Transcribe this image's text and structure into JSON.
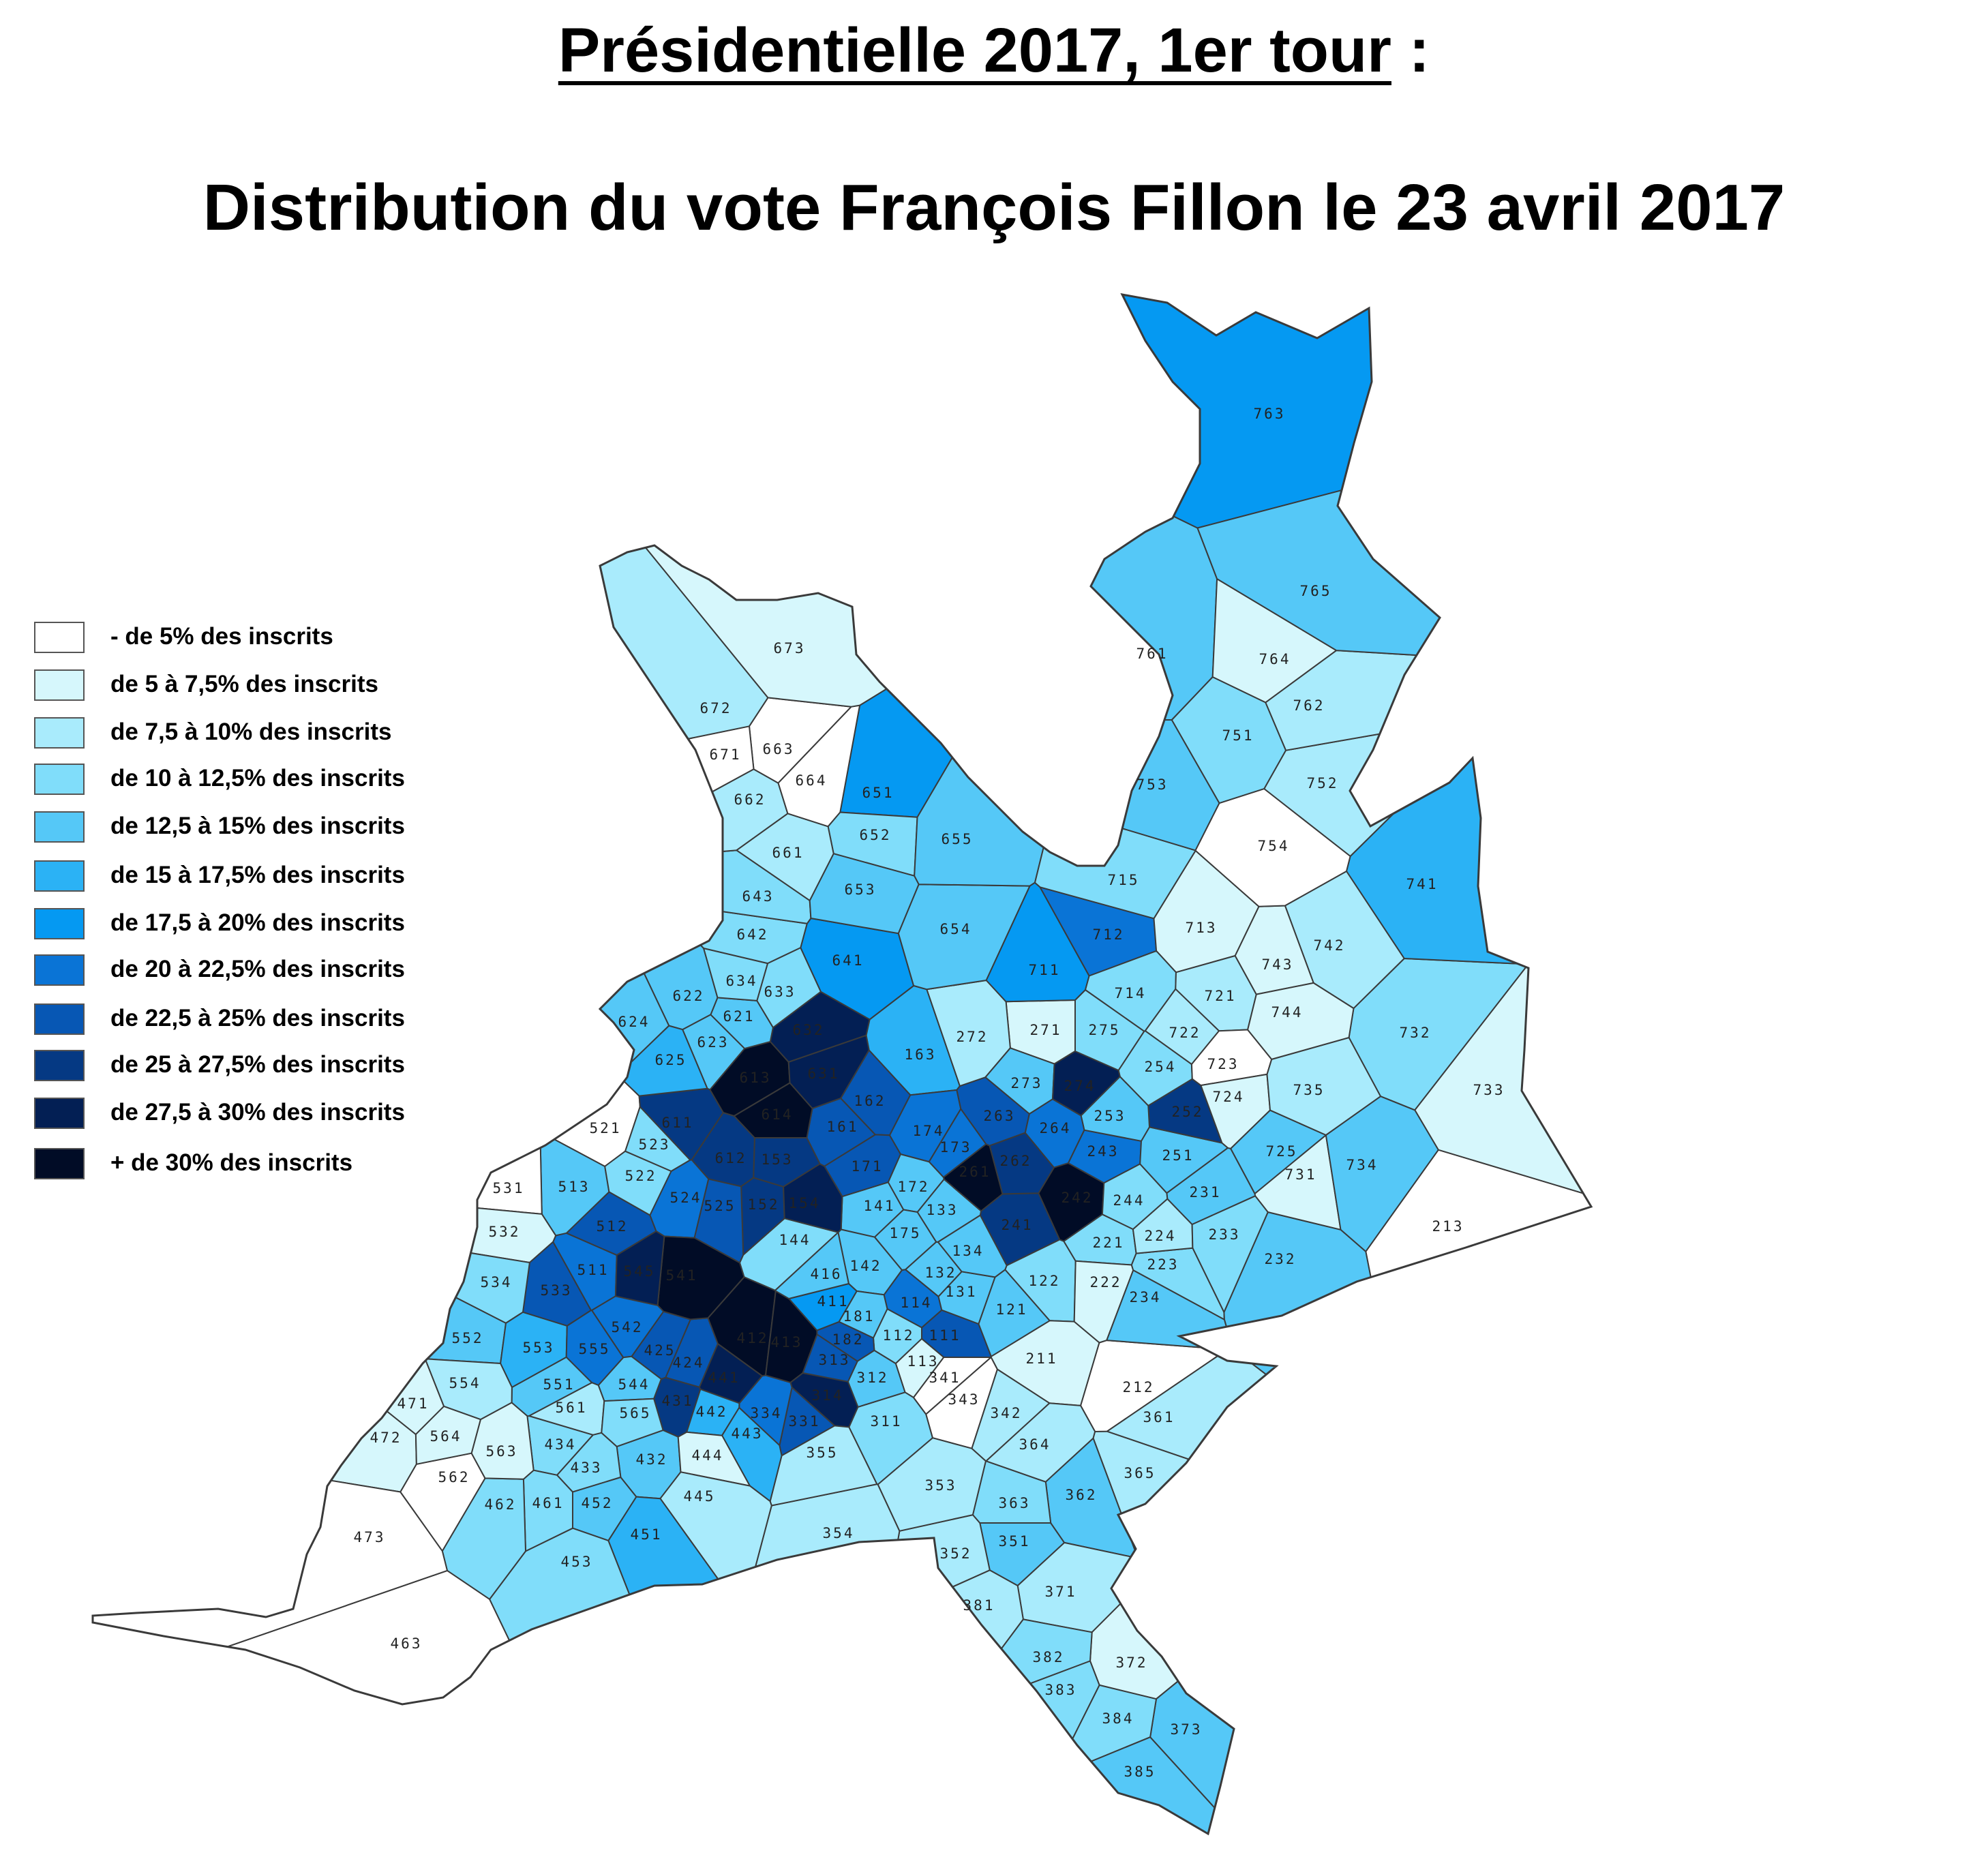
{
  "title": {
    "main": "Présidentielle 2017, 1er tour",
    "suffix": " :",
    "subtitle": "Distribution du vote François Fillon le 23 avril 2017"
  },
  "legend": [
    {
      "label": "- de 5% des inscrits",
      "color": "#ffffff"
    },
    {
      "label": "de 5 à 7,5% des inscrits",
      "color": "#d6f7fc"
    },
    {
      "label": "de 7,5 à 10% des inscrits",
      "color": "#a9ebfc"
    },
    {
      "label": "de 10 à 12,5% des inscrits",
      "color": "#80ddfa"
    },
    {
      "label": "de 12,5 à 15% des inscrits",
      "color": "#55c8f7"
    },
    {
      "label": "de 15 à 17,5% des inscrits",
      "color": "#2bb2f5"
    },
    {
      "label": "de 17,5 à 20% des inscrits",
      "color": "#0599f2"
    },
    {
      "label": "de 20 à 22,5% des inscrits",
      "color": "#0a74d6"
    },
    {
      "label": "de 22,5 à 25% des inscrits",
      "color": "#0757b4"
    },
    {
      "label": "de 25 à 27,5% des inscrits",
      "color": "#053983"
    },
    {
      "label": "de 27,5 à 30% des inscrits",
      "color": "#031f54"
    },
    {
      "label": "+ de 30% des inscrits",
      "color": "#010c26"
    }
  ],
  "districts": [
    {
      "id": "763",
      "c": 6
    },
    {
      "id": "765",
      "c": 4
    },
    {
      "id": "761",
      "c": 4
    },
    {
      "id": "764",
      "c": 1
    },
    {
      "id": "762",
      "c": 2
    },
    {
      "id": "751",
      "c": 3
    },
    {
      "id": "752",
      "c": 2
    },
    {
      "id": "753",
      "c": 4
    },
    {
      "id": "754",
      "c": 0
    },
    {
      "id": "741",
      "c": 5
    },
    {
      "id": "742",
      "c": 2
    },
    {
      "id": "743",
      "c": 1
    },
    {
      "id": "744",
      "c": 1
    },
    {
      "id": "735",
      "c": 2
    },
    {
      "id": "732",
      "c": 3
    },
    {
      "id": "733",
      "c": 1
    },
    {
      "id": "734",
      "c": 4
    },
    {
      "id": "731",
      "c": 1
    },
    {
      "id": "725",
      "c": 4
    },
    {
      "id": "724",
      "c": 1
    },
    {
      "id": "723",
      "c": 0
    },
    {
      "id": "722",
      "c": 2
    },
    {
      "id": "721",
      "c": 2
    },
    {
      "id": "713",
      "c": 1
    },
    {
      "id": "714",
      "c": 3
    },
    {
      "id": "715",
      "c": 3
    },
    {
      "id": "712",
      "c": 7
    },
    {
      "id": "711",
      "c": 6
    },
    {
      "id": "673",
      "c": 1
    },
    {
      "id": "672",
      "c": 2
    },
    {
      "id": "671",
      "c": 0
    },
    {
      "id": "663",
      "c": 0
    },
    {
      "id": "664",
      "c": 0
    },
    {
      "id": "662",
      "c": 2
    },
    {
      "id": "661",
      "c": 2
    },
    {
      "id": "651",
      "c": 6
    },
    {
      "id": "652",
      "c": 3
    },
    {
      "id": "655",
      "c": 4
    },
    {
      "id": "653",
      "c": 4
    },
    {
      "id": "654",
      "c": 4
    },
    {
      "id": "643",
      "c": 3
    },
    {
      "id": "642",
      "c": 3
    },
    {
      "id": "641",
      "c": 6
    },
    {
      "id": "634",
      "c": 3
    },
    {
      "id": "633",
      "c": 3
    },
    {
      "id": "632",
      "c": 10
    },
    {
      "id": "631",
      "c": 10
    },
    {
      "id": "621",
      "c": 4
    },
    {
      "id": "622",
      "c": 4
    },
    {
      "id": "623",
      "c": 4
    },
    {
      "id": "624",
      "c": 4
    },
    {
      "id": "625",
      "c": 5
    },
    {
      "id": "611",
      "c": 9
    },
    {
      "id": "612",
      "c": 9
    },
    {
      "id": "613",
      "c": 11
    },
    {
      "id": "614",
      "c": 11
    },
    {
      "id": "163",
      "c": 5
    },
    {
      "id": "162",
      "c": 8
    },
    {
      "id": "161",
      "c": 8
    },
    {
      "id": "171",
      "c": 8
    },
    {
      "id": "172",
      "c": 4
    },
    {
      "id": "174",
      "c": 7
    },
    {
      "id": "173",
      "c": 7
    },
    {
      "id": "175",
      "c": 4
    },
    {
      "id": "141",
      "c": 4
    },
    {
      "id": "142",
      "c": 4
    },
    {
      "id": "144",
      "c": 3
    },
    {
      "id": "154",
      "c": 10
    },
    {
      "id": "153",
      "c": 9
    },
    {
      "id": "152",
      "c": 9
    },
    {
      "id": "272",
      "c": 2
    },
    {
      "id": "271",
      "c": 1
    },
    {
      "id": "275",
      "c": 3
    },
    {
      "id": "274",
      "c": 10
    },
    {
      "id": "273",
      "c": 4
    },
    {
      "id": "263",
      "c": 8
    },
    {
      "id": "264",
      "c": 7
    },
    {
      "id": "262",
      "c": 9
    },
    {
      "id": "261",
      "c": 11
    },
    {
      "id": "253",
      "c": 4
    },
    {
      "id": "254",
      "c": 3
    },
    {
      "id": "252",
      "c": 9
    },
    {
      "id": "251",
      "c": 4
    },
    {
      "id": "243",
      "c": 7
    },
    {
      "id": "242",
      "c": 11
    },
    {
      "id": "241",
      "c": 9
    },
    {
      "id": "244",
      "c": 3
    },
    {
      "id": "231",
      "c": 4
    },
    {
      "id": "233",
      "c": 3
    },
    {
      "id": "232",
      "c": 4
    },
    {
      "id": "224",
      "c": 2
    },
    {
      "id": "223",
      "c": 3
    },
    {
      "id": "221",
      "c": 3
    },
    {
      "id": "222",
      "c": 1
    },
    {
      "id": "234",
      "c": 4
    },
    {
      "id": "213",
      "c": 0
    },
    {
      "id": "212",
      "c": 0
    },
    {
      "id": "211",
      "c": 1
    },
    {
      "id": "133",
      "c": 4
    },
    {
      "id": "134",
      "c": 4
    },
    {
      "id": "132",
      "c": 4
    },
    {
      "id": "131",
      "c": 4
    },
    {
      "id": "122",
      "c": 3
    },
    {
      "id": "121",
      "c": 4
    },
    {
      "id": "114",
      "c": 7
    },
    {
      "id": "113",
      "c": 1
    },
    {
      "id": "112",
      "c": 3
    },
    {
      "id": "111",
      "c": 8
    },
    {
      "id": "181",
      "c": 4
    },
    {
      "id": "182",
      "c": 8
    },
    {
      "id": "521",
      "c": 0
    },
    {
      "id": "523",
      "c": 3
    },
    {
      "id": "522",
      "c": 3
    },
    {
      "id": "524",
      "c": 7
    },
    {
      "id": "525",
      "c": 8
    },
    {
      "id": "531",
      "c": 0
    },
    {
      "id": "532",
      "c": 1
    },
    {
      "id": "513",
      "c": 4
    },
    {
      "id": "512",
      "c": 8
    },
    {
      "id": "511",
      "c": 7
    },
    {
      "id": "534",
      "c": 3
    },
    {
      "id": "533",
      "c": 8
    },
    {
      "id": "545",
      "c": 10
    },
    {
      "id": "541",
      "c": 11
    },
    {
      "id": "542",
      "c": 7
    },
    {
      "id": "552",
      "c": 4
    },
    {
      "id": "553",
      "c": 5
    },
    {
      "id": "555",
      "c": 7
    },
    {
      "id": "551",
      "c": 4
    },
    {
      "id": "554",
      "c": 2
    },
    {
      "id": "544",
      "c": 4
    },
    {
      "id": "425",
      "c": 8
    },
    {
      "id": "424",
      "c": 8
    },
    {
      "id": "441",
      "c": 10
    },
    {
      "id": "411",
      "c": 6
    },
    {
      "id": "413",
      "c": 11
    },
    {
      "id": "412",
      "c": 11
    },
    {
      "id": "416",
      "c": 4
    },
    {
      "id": "313",
      "c": 8
    },
    {
      "id": "312",
      "c": 4
    },
    {
      "id": "311",
      "c": 3
    },
    {
      "id": "314",
      "c": 10
    },
    {
      "id": "331",
      "c": 8
    },
    {
      "id": "334",
      "c": 7
    },
    {
      "id": "442",
      "c": 5
    },
    {
      "id": "443",
      "c": 5
    },
    {
      "id": "431",
      "c": 9
    },
    {
      "id": "432",
      "c": 4
    },
    {
      "id": "471",
      "c": 1
    },
    {
      "id": "472",
      "c": 1
    },
    {
      "id": "564",
      "c": 1
    },
    {
      "id": "563",
      "c": 1
    },
    {
      "id": "561",
      "c": 2
    },
    {
      "id": "565",
      "c": 3
    },
    {
      "id": "562",
      "c": 0
    },
    {
      "id": "434",
      "c": 3
    },
    {
      "id": "433",
      "c": 3
    },
    {
      "id": "444",
      "c": 1
    },
    {
      "id": "445",
      "c": 2
    },
    {
      "id": "462",
      "c": 3
    },
    {
      "id": "461",
      "c": 3
    },
    {
      "id": "452",
      "c": 4
    },
    {
      "id": "451",
      "c": 5
    },
    {
      "id": "453",
      "c": 3
    },
    {
      "id": "473",
      "c": 0
    },
    {
      "id": "463",
      "c": 0
    },
    {
      "id": "355",
      "c": 2
    },
    {
      "id": "354",
      "c": 2
    },
    {
      "id": "353",
      "c": 2
    },
    {
      "id": "352",
      "c": 2
    },
    {
      "id": "341",
      "c": 0
    },
    {
      "id": "343",
      "c": 0
    },
    {
      "id": "342",
      "c": 2
    },
    {
      "id": "364",
      "c": 2
    },
    {
      "id": "361",
      "c": 2
    },
    {
      "id": "365",
      "c": 2
    },
    {
      "id": "362",
      "c": 4
    },
    {
      "id": "363",
      "c": 3
    },
    {
      "id": "351",
      "c": 4
    },
    {
      "id": "371",
      "c": 2
    },
    {
      "id": "381",
      "c": 2
    },
    {
      "id": "382",
      "c": 3
    },
    {
      "id": "383",
      "c": 3
    },
    {
      "id": "372",
      "c": 1
    },
    {
      "id": "384",
      "c": 3
    },
    {
      "id": "373",
      "c": 4
    },
    {
      "id": "385",
      "c": 4
    }
  ]
}
